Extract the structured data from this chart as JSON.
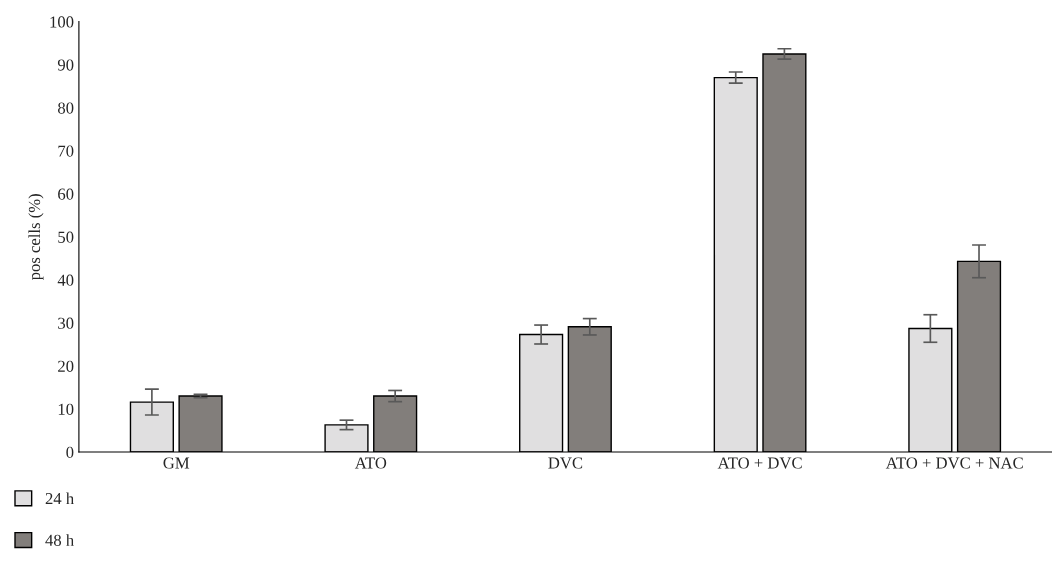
{
  "chart_data": {
    "type": "bar",
    "ylabel": "pos cells (%)",
    "categories": [
      "GM",
      "ATO",
      "DVC",
      "ATO + DVC",
      "ATO + DVC + NAC"
    ],
    "series": [
      {
        "name": "24 h",
        "color": "#e0dfe0",
        "values": [
          11.6,
          6.3,
          27.3,
          87.0,
          28.7
        ],
        "errors": [
          3.0,
          1.1,
          2.2,
          1.3,
          3.2
        ]
      },
      {
        "name": "48 h",
        "color": "#827e7b",
        "values": [
          13.0,
          13.0,
          29.1,
          92.5,
          44.3
        ],
        "errors": [
          0.4,
          1.3,
          1.9,
          1.2,
          3.8
        ]
      }
    ],
    "ylim": [
      0,
      100
    ],
    "yticks": [
      0,
      10,
      20,
      30,
      40,
      50,
      60,
      70,
      80,
      90,
      100
    ],
    "grid": false,
    "legend": "bottom left"
  }
}
